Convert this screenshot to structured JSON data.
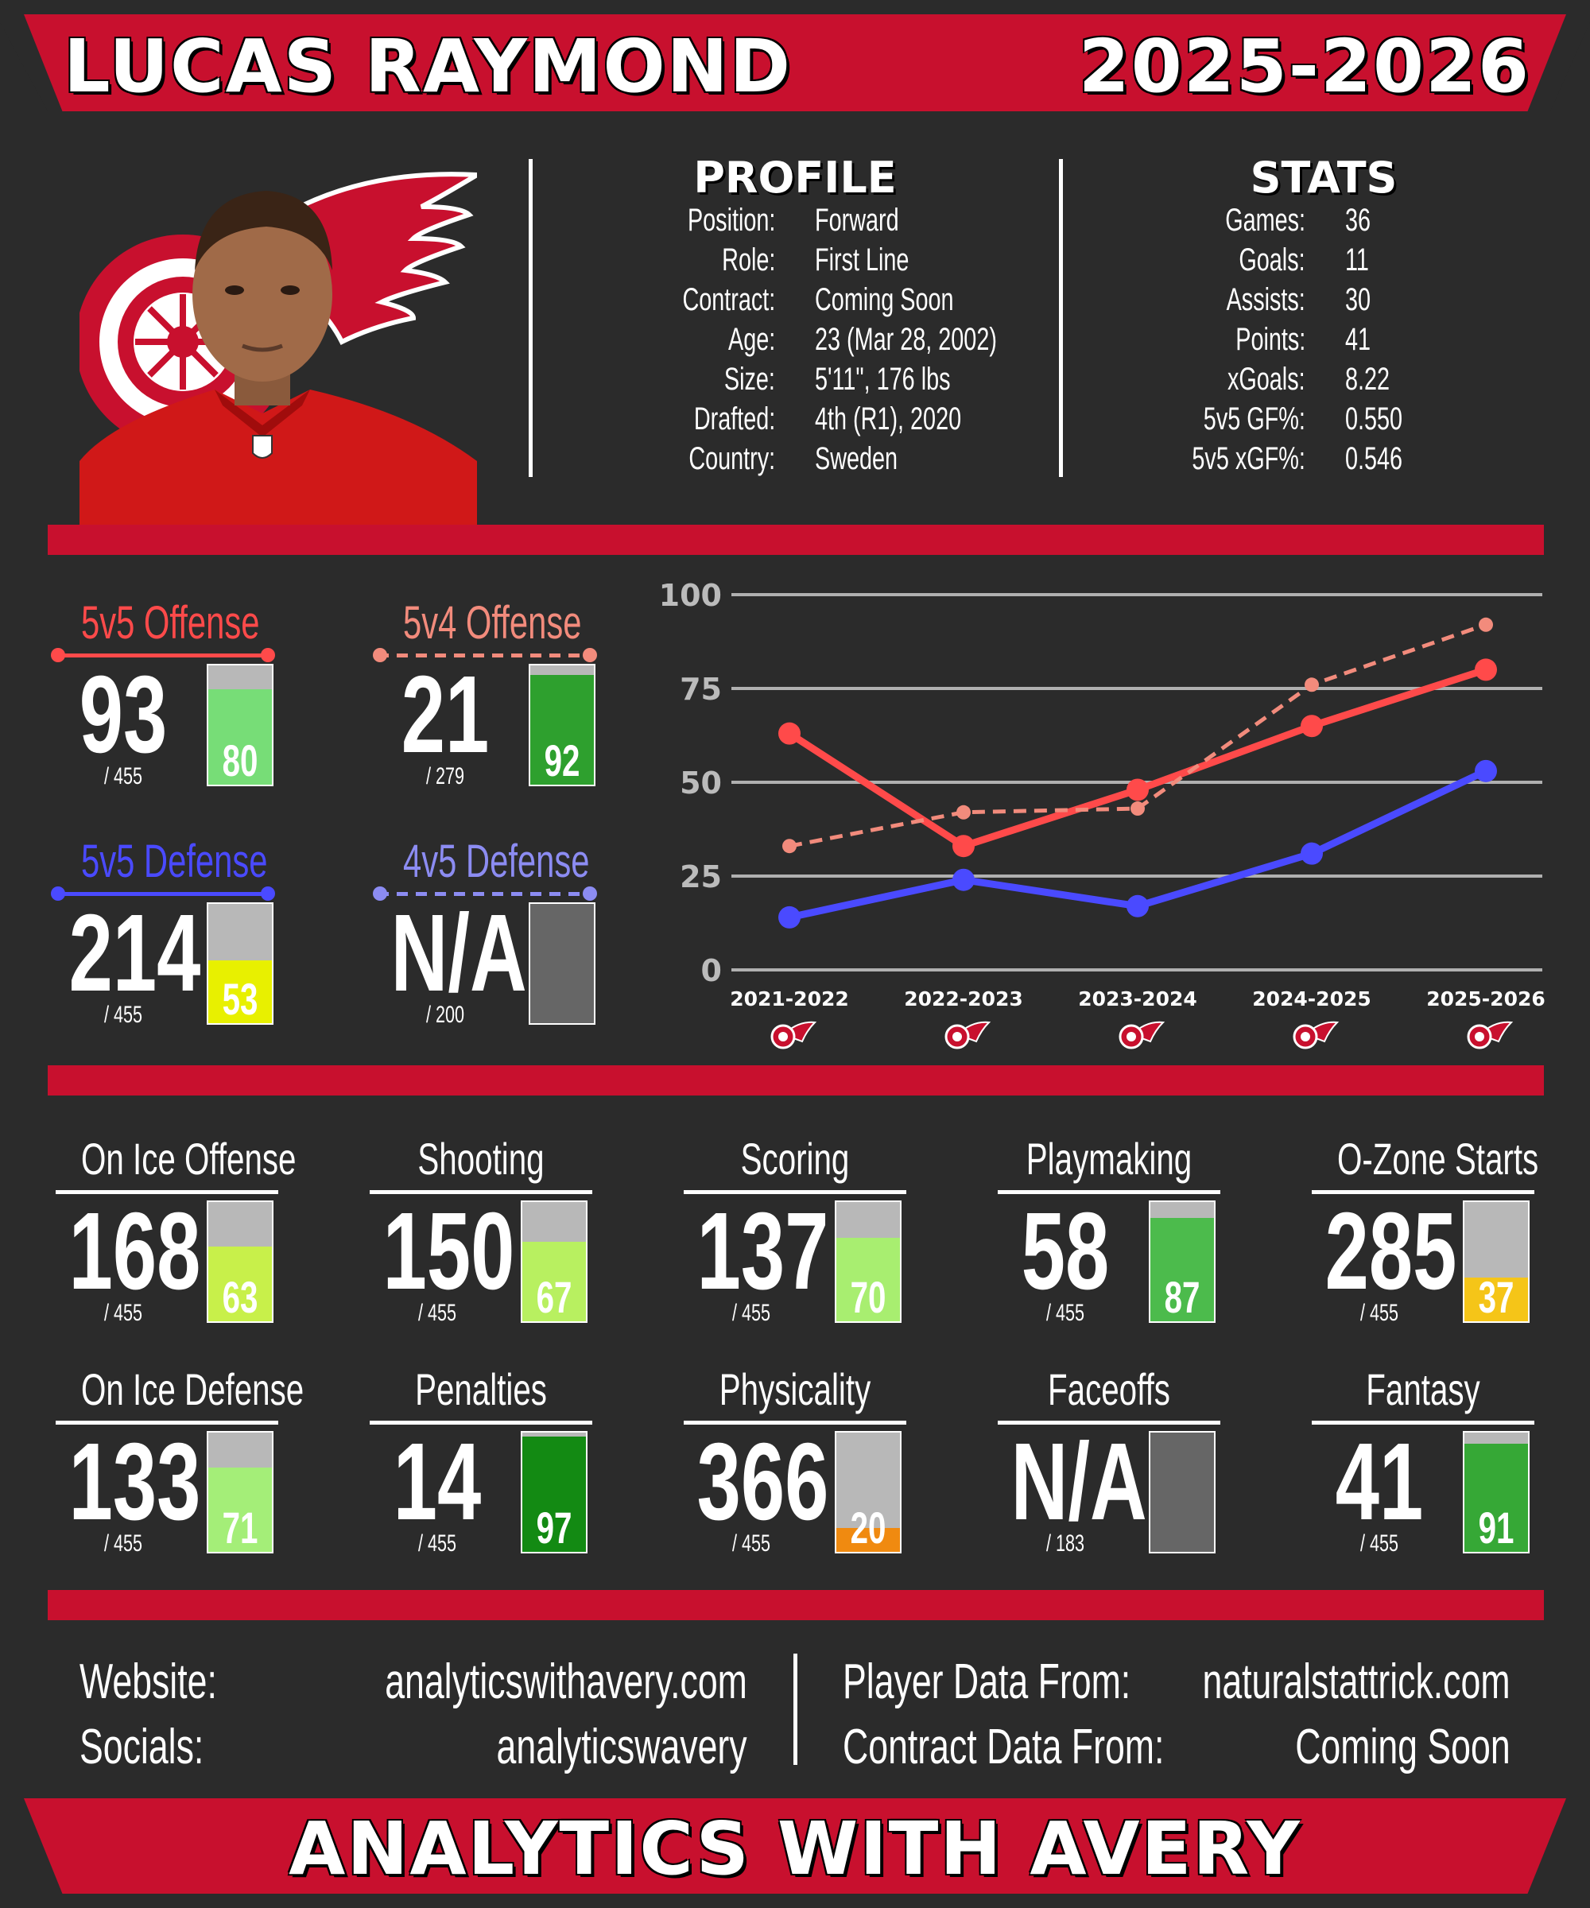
{
  "header": {
    "player_name": "LUCAS RAYMOND",
    "season": "2025-2026"
  },
  "profile": {
    "heading": "PROFILE",
    "rows": [
      {
        "label": "Position:",
        "value": "Forward"
      },
      {
        "label": "Role:",
        "value": "First Line"
      },
      {
        "label": "Contract:",
        "value": "Coming Soon"
      },
      {
        "label": "Age:",
        "value": "23 (Mar 28, 2002)"
      },
      {
        "label": "Size:",
        "value": "5'11\", 176 lbs"
      },
      {
        "label": "Drafted:",
        "value": "4th (R1), 2020"
      },
      {
        "label": "Country:",
        "value": "Sweden"
      }
    ]
  },
  "stats": {
    "heading": "STATS",
    "rows": [
      {
        "label": "Games:",
        "value": "36"
      },
      {
        "label": "Goals:",
        "value": "11"
      },
      {
        "label": "Assists:",
        "value": "30"
      },
      {
        "label": "Points:",
        "value": "41"
      },
      {
        "label": "xGoals:",
        "value": "8.22"
      },
      {
        "label": "5v5 GF%:",
        "value": "0.550"
      },
      {
        "label": "5v5 xGF%:",
        "value": "0.546"
      }
    ]
  },
  "icons": {
    "team_logo": "red-wings-logo-icon",
    "league_logo": "nhl-logo-icon",
    "player_photo": "player-headshot"
  },
  "colors": {
    "red": "#c8102e",
    "background": "#2b2b2b",
    "offense5v5": "#ff4a4a",
    "offense5v4": "#f28b7c",
    "defense5v5": "#4a4aff",
    "defense4v5": "#8c8cf2"
  },
  "top_metrics": [
    {
      "title": "5v5 Offense",
      "rank": "93",
      "total": "/ 455",
      "percentile": 80,
      "pct_label": "80",
      "color": "#ff4a4a",
      "fill": "#77dd77",
      "line": "solid"
    },
    {
      "title": "5v4 Offense",
      "rank": "21",
      "total": "/ 279",
      "percentile": 92,
      "pct_label": "92",
      "color": "#f28b7c",
      "fill": "#2ea02e",
      "line": "dashed"
    },
    {
      "title": "5v5 Defense",
      "rank": "214",
      "total": "/ 455",
      "percentile": 53,
      "pct_label": "53",
      "color": "#4a4aff",
      "fill": "#e8f000",
      "line": "solid"
    },
    {
      "title": "4v5 Defense",
      "rank": "N/A",
      "total": "/ 200",
      "percentile": null,
      "pct_label": "",
      "color": "#8c8cf2",
      "fill": "#666666",
      "line": "dashed"
    }
  ],
  "chart_data": {
    "type": "line",
    "categories": [
      "2021-2022",
      "2022-2023",
      "2023-2024",
      "2024-2025",
      "2025-2026"
    ],
    "ylim": [
      0,
      100
    ],
    "yticks": [
      "0",
      "25",
      "50",
      "75",
      "100"
    ],
    "grid": true,
    "series": [
      {
        "name": "5v5 Offense",
        "values": [
          63,
          33,
          48,
          65,
          80
        ],
        "color": "#ff4a4a",
        "style": "solid"
      },
      {
        "name": "5v4 Offense",
        "values": [
          33,
          42,
          43,
          76,
          92
        ],
        "color": "#f28b7c",
        "style": "dashed"
      },
      {
        "name": "5v5 Defense",
        "values": [
          14,
          24,
          17,
          31,
          53
        ],
        "color": "#4a4aff",
        "style": "solid"
      }
    ]
  },
  "metrics": [
    {
      "title": "On Ice Offense",
      "rank": "168",
      "total": "/ 455",
      "percentile": 63,
      "pct_label": "63",
      "fill": "#c8f04a"
    },
    {
      "title": "Shooting",
      "rank": "150",
      "total": "/ 455",
      "percentile": 67,
      "pct_label": "67",
      "fill": "#b8f060"
    },
    {
      "title": "Scoring",
      "rank": "137",
      "total": "/ 455",
      "percentile": 70,
      "pct_label": "70",
      "fill": "#a8ee70"
    },
    {
      "title": "Playmaking",
      "rank": "58",
      "total": "/ 455",
      "percentile": 87,
      "pct_label": "87",
      "fill": "#4cbb4c"
    },
    {
      "title": "O-Zone Starts",
      "rank": "285",
      "total": "/ 455",
      "percentile": 37,
      "pct_label": "37",
      "fill": "#f5c518"
    },
    {
      "title": "On Ice Defense",
      "rank": "133",
      "total": "/ 455",
      "percentile": 71,
      "pct_label": "71",
      "fill": "#a4ee78"
    },
    {
      "title": "Penalties",
      "rank": "14",
      "total": "/ 455",
      "percentile": 97,
      "pct_label": "97",
      "fill": "#138a13"
    },
    {
      "title": "Physicality",
      "rank": "366",
      "total": "/ 455",
      "percentile": 20,
      "pct_label": "20",
      "fill": "#f08a10"
    },
    {
      "title": "Faceoffs",
      "rank": "N/A",
      "total": "/ 183",
      "percentile": null,
      "pct_label": "",
      "fill": "#666666"
    },
    {
      "title": "Fantasy",
      "rank": "41",
      "total": "/ 455",
      "percentile": 91,
      "pct_label": "91",
      "fill": "#36a836"
    }
  ],
  "footer": {
    "website_label": "Website:",
    "website_value": "analyticswithavery.com",
    "socials_label": "Socials:",
    "socials_value": "analyticswavery",
    "player_data_label": "Player Data From:",
    "player_data_value": "naturalstattrick.com",
    "contract_data_label": "Contract Data From:",
    "contract_data_value": "Coming Soon",
    "brand": "ANALYTICS WITH AVERY"
  }
}
